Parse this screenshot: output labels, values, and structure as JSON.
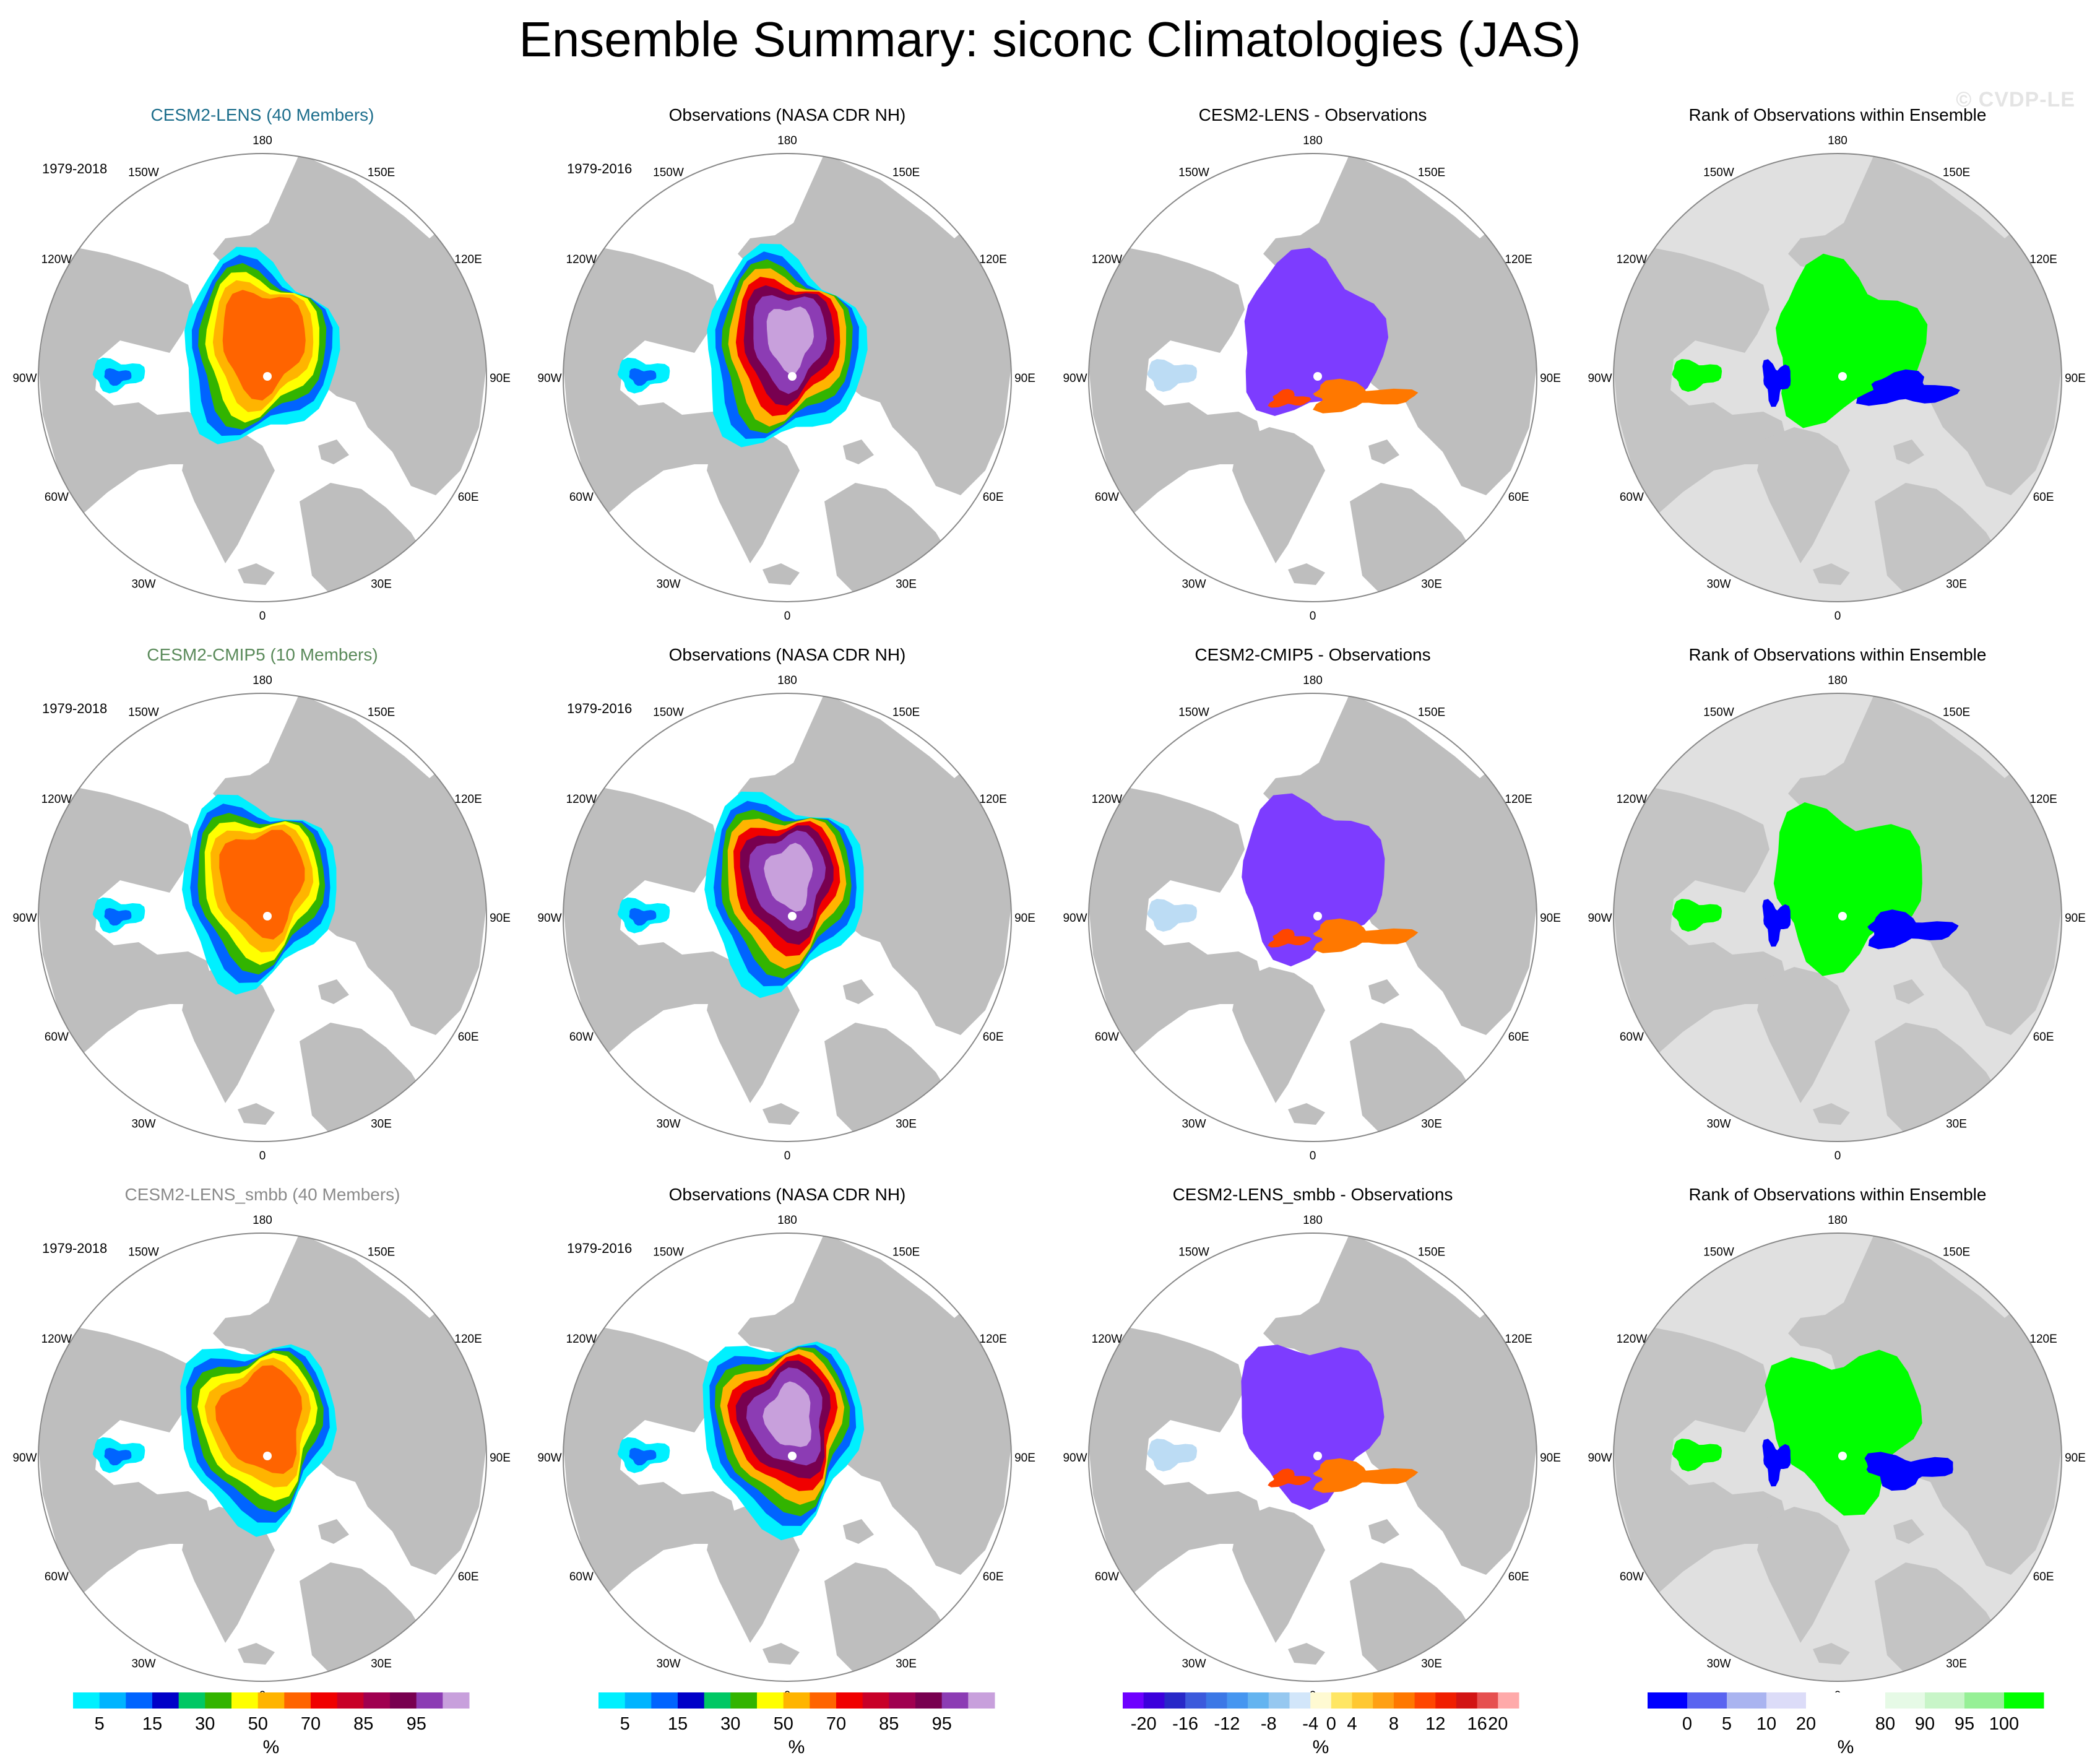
{
  "title": "Ensemble Summary: siconc Climatologies (JAS)",
  "watermark": "© CVDP-LE",
  "longitude_labels": [
    "180",
    "150E",
    "120E",
    "90E",
    "60E",
    "30E",
    "0",
    "30W",
    "60W",
    "90W",
    "120W",
    "150W"
  ],
  "rows": [
    {
      "panels": [
        {
          "title": "CESM2-LENS (40 Members)",
          "title_color": "#1d6e8c",
          "period": "1979-2018",
          "kind": "model"
        },
        {
          "title": "Observations (NASA CDR NH)",
          "title_color": "#000000",
          "period": "1979-2016",
          "kind": "obs"
        },
        {
          "title": "CESM2-LENS - Observations",
          "title_color": "#000000",
          "period": "",
          "kind": "diff"
        },
        {
          "title": "Rank of Observations within Ensemble",
          "title_color": "#000000",
          "period": "",
          "kind": "rank"
        }
      ]
    },
    {
      "panels": [
        {
          "title": "CESM2-CMIP5 (10 Members)",
          "title_color": "#5a8a5a",
          "period": "1979-2018",
          "kind": "model"
        },
        {
          "title": "Observations (NASA CDR NH)",
          "title_color": "#000000",
          "period": "1979-2016",
          "kind": "obs"
        },
        {
          "title": "CESM2-CMIP5 - Observations",
          "title_color": "#000000",
          "period": "",
          "kind": "diff"
        },
        {
          "title": "Rank of Observations within Ensemble",
          "title_color": "#000000",
          "period": "",
          "kind": "rank"
        }
      ]
    },
    {
      "panels": [
        {
          "title": "CESM2-LENS_smbb (40 Members)",
          "title_color": "#8a8a8a",
          "period": "1979-2018",
          "kind": "model"
        },
        {
          "title": "Observations (NASA CDR NH)",
          "title_color": "#000000",
          "period": "1979-2016",
          "kind": "obs"
        },
        {
          "title": "CESM2-LENS_smbb - Observations",
          "title_color": "#000000",
          "period": "",
          "kind": "diff"
        },
        {
          "title": "Rank of Observations within Ensemble",
          "title_color": "#000000",
          "period": "",
          "kind": "rank"
        }
      ]
    }
  ],
  "colorbars": [
    {
      "unit": "%",
      "colors": [
        "#00f0ff",
        "#00b4ff",
        "#0064ff",
        "#0000c8",
        "#00c864",
        "#32b400",
        "#ffff00",
        "#ffb400",
        "#ff6400",
        "#f00000",
        "#c80028",
        "#a00050",
        "#780050",
        "#8c3cb4",
        "#c8a0dc"
      ],
      "tick_labels": [
        "5",
        "15",
        "30",
        "50",
        "70",
        "85",
        "95"
      ],
      "tick_after_index": [
        0,
        2,
        4,
        6,
        8,
        10,
        12
      ]
    },
    {
      "unit": "%",
      "colors": [
        "#00f0ff",
        "#00b4ff",
        "#0064ff",
        "#0000c8",
        "#00c864",
        "#32b400",
        "#ffff00",
        "#ffb400",
        "#ff6400",
        "#f00000",
        "#c80028",
        "#a00050",
        "#780050",
        "#8c3cb4",
        "#c8a0dc"
      ],
      "tick_labels": [
        "5",
        "15",
        "30",
        "50",
        "70",
        "85",
        "95"
      ],
      "tick_after_index": [
        0,
        2,
        4,
        6,
        8,
        10,
        12
      ]
    },
    {
      "unit": "%",
      "colors": [
        "#6e00ff",
        "#3c00dc",
        "#2828c8",
        "#3c5adc",
        "#3c78e6",
        "#4696f0",
        "#64b4f0",
        "#96c8f0",
        "#d2e6fa",
        "#fffad2",
        "#ffe664",
        "#ffc832",
        "#ffa014",
        "#ff7800",
        "#ff4600",
        "#f01e00",
        "#d21414",
        "#e65050",
        "#ffaaaa"
      ],
      "tick_labels": [
        "-20",
        "-16",
        "-12",
        "-8",
        "-4",
        "0",
        "4",
        "8",
        "12",
        "16",
        "20"
      ],
      "tick_after_index": [
        0,
        2,
        4,
        6,
        8,
        9,
        10,
        12,
        14,
        16,
        17
      ]
    },
    {
      "unit": "%",
      "colors": [
        "#0000ff",
        "#5a64f0",
        "#aab4f0",
        "#dcdcf8",
        "#ffffff",
        "#ffffff",
        "#e6fae6",
        "#c8f5c8",
        "#96f096",
        "#00ff00"
      ],
      "tick_labels": [
        "0",
        "5",
        "10",
        "20",
        "80",
        "90",
        "95",
        "100"
      ],
      "tick_after_index": [
        0,
        1,
        2,
        3,
        5,
        6,
        7,
        8
      ]
    }
  ]
}
